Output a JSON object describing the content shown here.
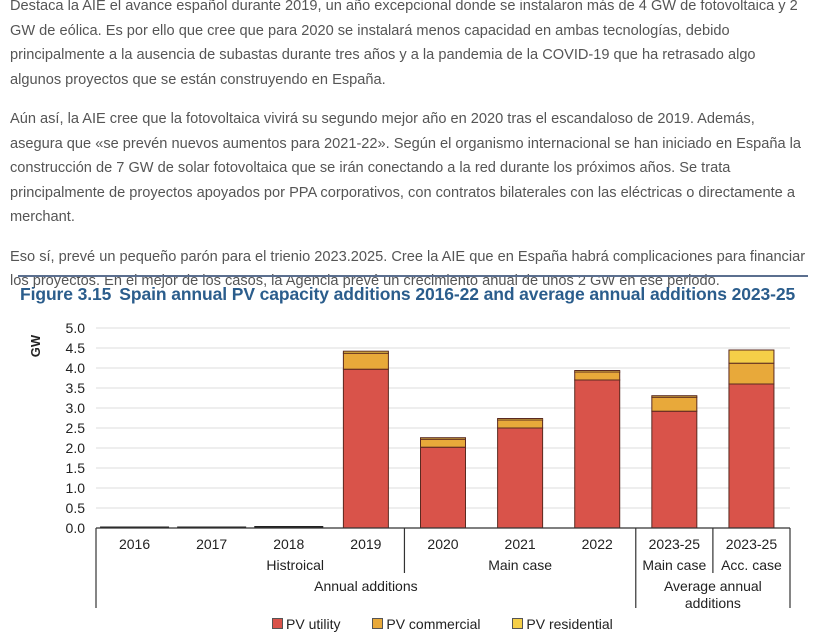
{
  "article": {
    "paragraphs": [
      "Destaca la AIE el avance español durante 2019, un año excepcional donde se instalaron más de 4 GW de fotovoltaica y 2 GW de eólica. Es por ello que cree que para 2020 se instalará menos capacidad en ambas tecnologías, debido principalmente a la ausencia de subastas durante tres años y a la pandemia de la COVID-19 que ha retrasado algo algunos proyectos que se están construyendo en España.",
      "Aún así, la AIE cree que la fotovoltaica vivirá su segundo mejor año en 2020 tras el escandaloso de 2019. Además, asegura que «se prevén nuevos aumentos para 2021-22». Según el organismo internacional se han iniciado en España la construcción de 7 GW de solar fotovoltaica que se irán conectando a la red durante los próximos años. Se trata principalmente de proyectos apoyados por PPA corporativos, con contratos bilaterales con las eléctricas o directamente a merchant.",
      "Eso sí, prevé un pequeño parón para el trienio 2023.2025. Cree la AIE que en España habrá complicaciones para financiar los proyectos. En el mejor de los casos, la Agencia prevé un crecimiento anual de unos 2 GW en ese periodo."
    ]
  },
  "figure": {
    "number": "Figure 3.15",
    "title": "Spain annual PV capacity additions 2016-22 and average annual additions 2023-25"
  },
  "colors": {
    "title": "#2b5d8c",
    "rule": "#5b6f8f",
    "utility": "#d9534a",
    "commercial": "#e8a93a",
    "residential": "#f5cf48",
    "grid": "#dddddd"
  },
  "chart_data": {
    "type": "bar",
    "stacked": true,
    "title": "Spain annual PV capacity additions 2016-22 and average annual additions 2023-25",
    "xlabel": "",
    "ylabel": "GW",
    "ylim": [
      0,
      5
    ],
    "yticks": [
      "0.0",
      "0.5",
      "1.0",
      "1.5",
      "2.0",
      "2.5",
      "3.0",
      "3.5",
      "4.0",
      "4.5",
      "5.0"
    ],
    "grid": true,
    "legend_position": "bottom",
    "categories": [
      "2016",
      "2017",
      "2018",
      "2019",
      "2020",
      "2021",
      "2022",
      "2023-25",
      "2023-25"
    ],
    "category_sublabels": [
      "",
      "",
      "",
      "",
      "",
      "",
      "",
      "Main case",
      "Acc. case"
    ],
    "groups": [
      {
        "label": "Histroical",
        "from": 0,
        "to": 3
      },
      {
        "label": "Main case",
        "from": 4,
        "to": 6
      },
      {
        "label": "Annual additions",
        "from": 0,
        "to": 6
      },
      {
        "label": "Average annual additions",
        "from": 7,
        "to": 8
      }
    ],
    "series": [
      {
        "name": "PV utility",
        "values": [
          0.02,
          0.02,
          0.05,
          3.97,
          2.02,
          2.5,
          3.7,
          2.92,
          3.6
        ]
      },
      {
        "name": "PV commercial",
        "values": [
          0.0,
          0.0,
          0.0,
          0.4,
          0.2,
          0.2,
          0.2,
          0.35,
          0.52
        ]
      },
      {
        "name": "PV residential",
        "values": [
          0.0,
          0.0,
          0.0,
          0.05,
          0.03,
          0.03,
          0.03,
          0.03,
          0.33
        ]
      }
    ]
  }
}
